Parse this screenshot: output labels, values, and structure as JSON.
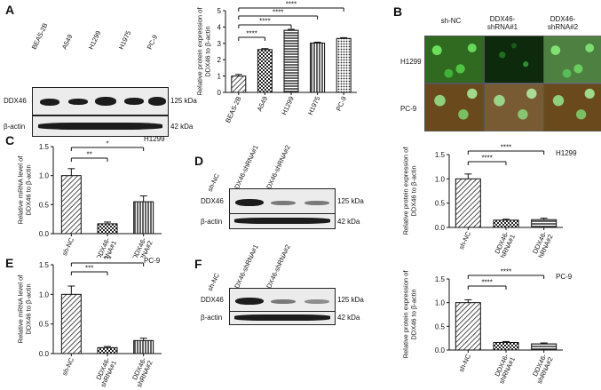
{
  "panels": {
    "A": "A",
    "B": "B",
    "C": "C",
    "D": "D",
    "E": "E",
    "F": "F"
  },
  "blot_A": {
    "lanes": [
      "BEAS-2B",
      "A549",
      "H1299",
      "H1975",
      "PC-9"
    ],
    "rows": [
      {
        "label": "DDX46",
        "kda": "125 kDa"
      },
      {
        "label": "β-actin",
        "kda": "42 kDa"
      }
    ]
  },
  "blot_D": {
    "lanes": [
      "sh-NC",
      "DDX46-shRNA#1",
      "DDX46-shRNA#2"
    ],
    "rows": [
      {
        "label": "DDX46",
        "kda": "125 kDa"
      },
      {
        "label": "β-actin",
        "kda": "42 kDa"
      }
    ]
  },
  "blot_F": {
    "lanes": [
      "sh-NC",
      "DDX46-shRNA#1",
      "DDX46-shRNA#2"
    ],
    "rows": [
      {
        "label": "DDX46",
        "kda": "125 kDa"
      },
      {
        "label": "β-actin",
        "kda": "42 kDa"
      }
    ]
  },
  "micrographs": {
    "columns": [
      "sh-NC",
      "DDX46-\nshRNA#1",
      "DDX46-\nshRNA#2"
    ],
    "rows": [
      "H1299",
      "PC-9"
    ]
  },
  "chart_data": [
    {
      "id": "A",
      "type": "bar",
      "categories": [
        "BEAS-2B",
        "A549",
        "H1299",
        "H1975",
        "PC-9"
      ],
      "values": [
        1.0,
        2.62,
        3.8,
        3.02,
        3.3
      ],
      "errors": [
        0.1,
        0.06,
        0.06,
        0.05,
        0.05
      ],
      "ylabel": "Relative protein expression of\nDDX46 to β-actin",
      "ylim": [
        0,
        5
      ],
      "yticks": [
        0,
        1,
        2,
        3,
        4,
        5
      ],
      "sig": [
        "****",
        "****",
        "****",
        "****"
      ]
    },
    {
      "id": "C",
      "type": "bar",
      "categories": [
        "sh-NC",
        "DDX46-\nshRNA#1",
        "DDX46-\nshRNA#2"
      ],
      "values": [
        1.0,
        0.17,
        0.55
      ],
      "errors": [
        0.12,
        0.03,
        0.1
      ],
      "ylabel": "Relative mRNA level of\nDDX46 to β-actin",
      "title": "H1299",
      "ylim": [
        0,
        1.5
      ],
      "yticks": [
        0.0,
        0.5,
        1.0,
        1.5
      ],
      "sig": [
        "**",
        "*"
      ]
    },
    {
      "id": "B2",
      "type": "bar",
      "categories": [
        "sh-NC",
        "DDX46-\nshRNA#1",
        "DDX46-\nshRNA#2"
      ],
      "values": [
        1.0,
        0.15,
        0.16
      ],
      "errors": [
        0.1,
        0.02,
        0.03
      ],
      "ylabel": "Relative protein expression of\nDDX46 to β-actin",
      "title": "H1299",
      "ylim": [
        0,
        1.5
      ],
      "yticks": [
        0.0,
        0.5,
        1.0,
        1.5
      ],
      "sig": [
        "****",
        "****"
      ]
    },
    {
      "id": "E",
      "type": "bar",
      "categories": [
        "sh-NC",
        "DDX46-\nshRNA#1",
        "DDX46-\nshRNA#2"
      ],
      "values": [
        1.0,
        0.1,
        0.22
      ],
      "errors": [
        0.14,
        0.02,
        0.04
      ],
      "ylabel": "Relative mRNA level of\nDDX46 to β-actin",
      "title": "PC-9",
      "ylim": [
        0,
        1.5
      ],
      "yticks": [
        0.0,
        0.5,
        1.0,
        1.5
      ],
      "sig": [
        "***",
        "***"
      ]
    },
    {
      "id": "F2",
      "type": "bar",
      "categories": [
        "sh-NC",
        "DDX46-\nshRNA#1",
        "DDX46-\nshRNA#2"
      ],
      "values": [
        1.0,
        0.16,
        0.13
      ],
      "errors": [
        0.06,
        0.02,
        0.02
      ],
      "ylabel": "Relative protein expression of\nDDX46 to β-actin",
      "title": "PC-9",
      "ylim": [
        0,
        1.5
      ],
      "yticks": [
        0.0,
        0.5,
        1.0,
        1.5
      ],
      "sig": [
        "****",
        "****"
      ]
    }
  ]
}
